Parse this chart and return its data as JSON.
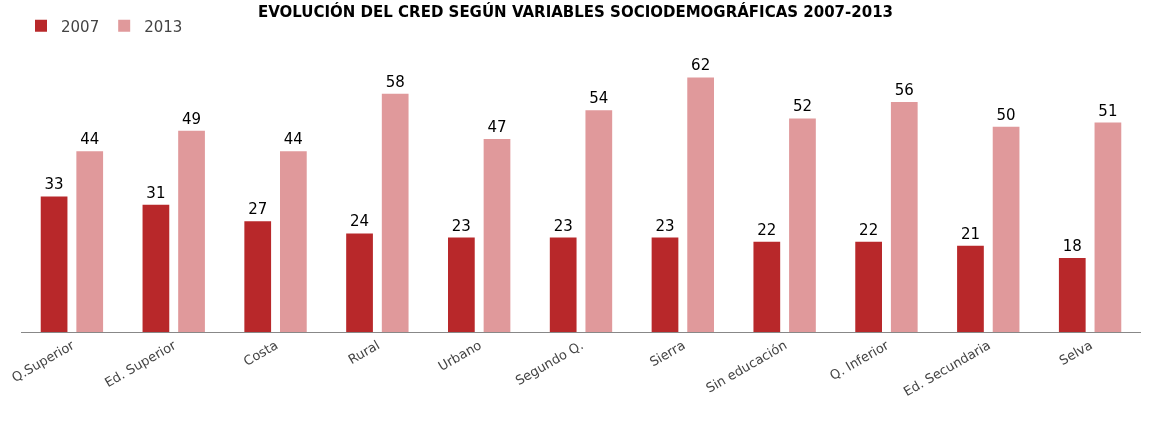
{
  "chart_data": {
    "type": "bar",
    "title": "EVOLUCIÓN DEL CRED SEGÚN VARIABLES SOCIODEMOGRÁFICAS 2007-2013",
    "categories": [
      "Q.Superior",
      "Ed. Superior",
      "Costa",
      "Rural",
      "Urbano",
      "Segundo Q.",
      "Sierra",
      "Sin educación",
      "Q. Inferior",
      "Ed. Secundaria",
      "Selva"
    ],
    "series": [
      {
        "name": "2007",
        "color": "#b8282a",
        "values": [
          33,
          31,
          27,
          24,
          23,
          23,
          23,
          22,
          22,
          21,
          18
        ]
      },
      {
        "name": "2013",
        "color": "#e0999b",
        "values": [
          44,
          49,
          44,
          58,
          47,
          54,
          62,
          52,
          56,
          50,
          51
        ]
      }
    ],
    "data_labels": true,
    "legend": "top left",
    "grid": false
  }
}
